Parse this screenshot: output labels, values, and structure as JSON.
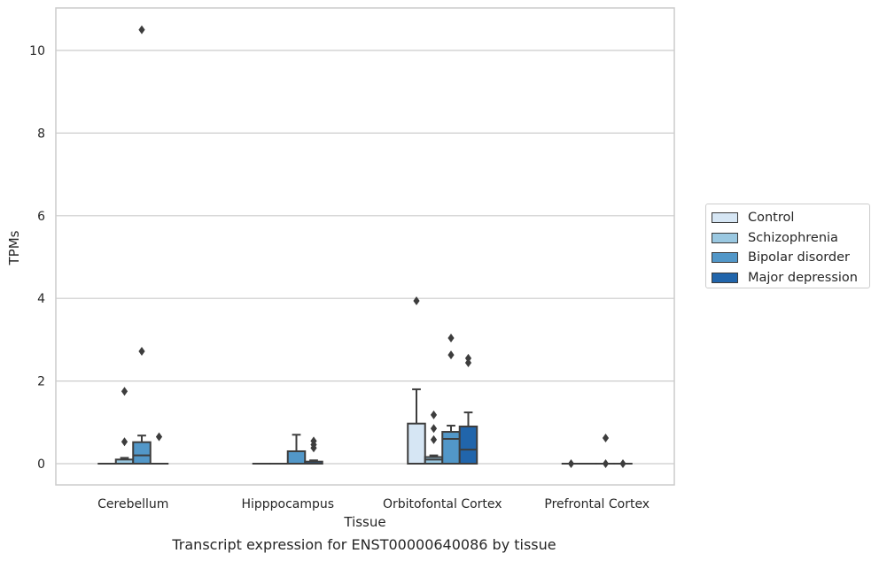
{
  "chart_data": {
    "type": "box",
    "xlabel": "Tissue",
    "ylabel": "TPMs",
    "caption": "Transcript expression for ENST00000640086 by tissue",
    "ylim": [
      -0.5,
      11
    ],
    "yticks": [
      0,
      2,
      4,
      6,
      8,
      10
    ],
    "grid": true,
    "legend_position": "right",
    "categories": [
      "Cerebellum",
      "Hipppocampus",
      "Orbitofontal Cortex",
      "Prefrontal Cortex"
    ],
    "series": [
      {
        "name": "Control",
        "color": "#d6e6f4"
      },
      {
        "name": "Schizophrenia",
        "color": "#9ac8e1"
      },
      {
        "name": "Bipolar disorder",
        "color": "#5297c8"
      },
      {
        "name": "Major depression",
        "color": "#2165ab"
      }
    ],
    "boxes": [
      {
        "category": 0,
        "series": 0,
        "q1": 0,
        "median": 0,
        "q3": 0,
        "whislo": 0,
        "whishi": 0,
        "fliers": []
      },
      {
        "category": 0,
        "series": 1,
        "q1": 0,
        "median": 0,
        "q3": 0.1,
        "whislo": 0,
        "whishi": 0.14,
        "fliers": [
          0.53,
          1.75
        ]
      },
      {
        "category": 0,
        "series": 2,
        "q1": 0,
        "median": 0.2,
        "q3": 0.52,
        "whislo": 0,
        "whishi": 0.68,
        "fliers": [
          2.72,
          10.5
        ]
      },
      {
        "category": 0,
        "series": 3,
        "q1": 0,
        "median": 0,
        "q3": 0,
        "whislo": 0,
        "whishi": 0,
        "fliers": [
          0.65
        ]
      },
      {
        "category": 1,
        "series": 0,
        "q1": 0,
        "median": 0,
        "q3": 0,
        "whislo": 0,
        "whishi": 0,
        "fliers": []
      },
      {
        "category": 1,
        "series": 1,
        "q1": 0,
        "median": 0,
        "q3": 0,
        "whislo": 0,
        "whishi": 0,
        "fliers": []
      },
      {
        "category": 1,
        "series": 2,
        "q1": 0,
        "median": 0,
        "q3": 0.3,
        "whislo": 0,
        "whishi": 0.7,
        "fliers": []
      },
      {
        "category": 1,
        "series": 3,
        "q1": 0,
        "median": 0,
        "q3": 0.05,
        "whislo": 0,
        "whishi": 0.08,
        "fliers": [
          0.38,
          0.46,
          0.55
        ]
      },
      {
        "category": 2,
        "series": 0,
        "q1": 0,
        "median": 0,
        "q3": 0.97,
        "whislo": 0,
        "whishi": 1.8,
        "fliers": [
          3.94
        ]
      },
      {
        "category": 2,
        "series": 1,
        "q1": 0,
        "median": 0.1,
        "q3": 0.16,
        "whislo": 0,
        "whishi": 0.2,
        "fliers": [
          0.58,
          0.85,
          1.18
        ]
      },
      {
        "category": 2,
        "series": 2,
        "q1": 0,
        "median": 0.6,
        "q3": 0.77,
        "whislo": 0,
        "whishi": 0.92,
        "fliers": [
          2.63,
          3.04
        ]
      },
      {
        "category": 2,
        "series": 3,
        "q1": 0,
        "median": 0.34,
        "q3": 0.9,
        "whislo": 0,
        "whishi": 1.24,
        "fliers": [
          2.44,
          2.55
        ]
      },
      {
        "category": 3,
        "series": 0,
        "q1": 0,
        "median": 0,
        "q3": 0,
        "whislo": 0,
        "whishi": 0,
        "fliers": [
          0
        ]
      },
      {
        "category": 3,
        "series": 1,
        "q1": 0,
        "median": 0,
        "q3": 0,
        "whislo": 0,
        "whishi": 0,
        "fliers": []
      },
      {
        "category": 3,
        "series": 2,
        "q1": 0,
        "median": 0,
        "q3": 0,
        "whislo": 0,
        "whishi": 0,
        "fliers": [
          0,
          0.62
        ]
      },
      {
        "category": 3,
        "series": 3,
        "q1": 0,
        "median": 0,
        "q3": 0,
        "whislo": 0,
        "whishi": 0,
        "fliers": [
          0
        ]
      }
    ]
  }
}
